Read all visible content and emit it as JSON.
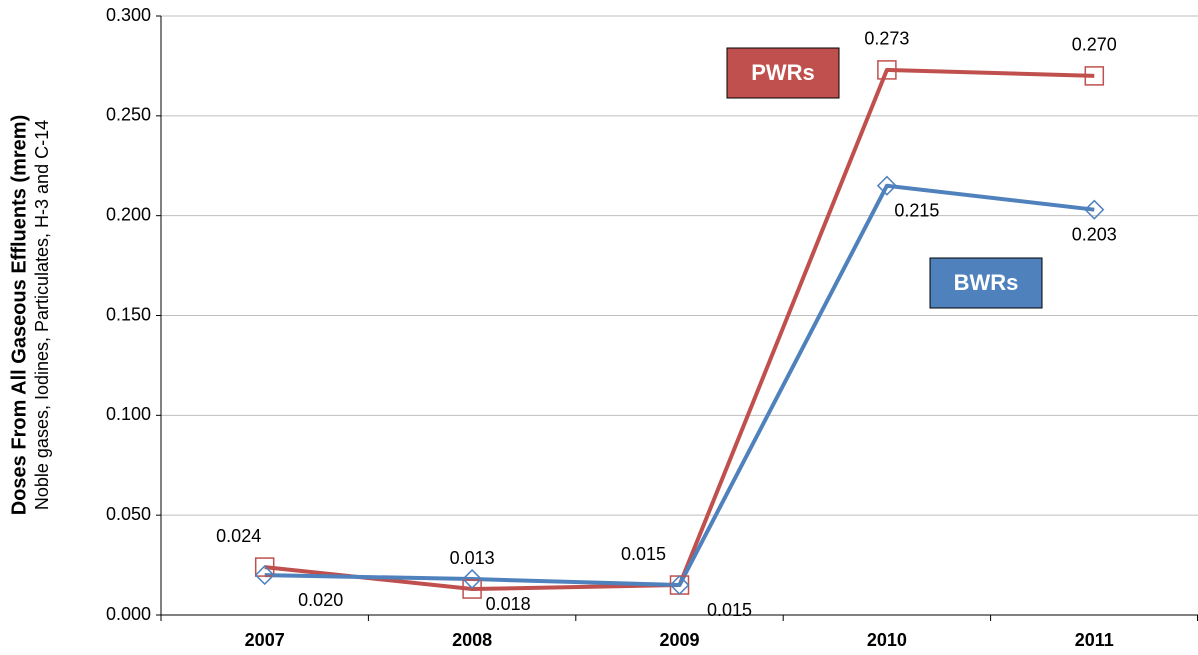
{
  "chart_data": {
    "type": "line",
    "y_axis_title": "Doses From All Gaseous Effluents (mrem)",
    "y_axis_subtitle": "Noble gases, Iodines, Particulates, H-3 and C-14",
    "categories": [
      "2007",
      "2008",
      "2009",
      "2010",
      "2011"
    ],
    "series": [
      {
        "name": "PWRs",
        "color": "#c0504d",
        "marker": "square",
        "values": [
          0.024,
          0.013,
          0.015,
          0.273,
          0.27
        ],
        "value_labels": [
          "0.024",
          "0.013",
          "0.015",
          "0.273",
          "0.270"
        ]
      },
      {
        "name": "BWRs",
        "color": "#4f81bd",
        "marker": "diamond",
        "values": [
          0.02,
          0.018,
          0.015,
          0.215,
          0.203
        ],
        "value_labels": [
          "0.020",
          "0.018",
          "0.015",
          "0.215",
          "0.203"
        ]
      }
    ],
    "ylim": [
      0,
      0.3
    ],
    "yticks": [
      {
        "value": 0,
        "label": "0.000"
      },
      {
        "value": 0.05,
        "label": "0.050"
      },
      {
        "value": 0.1,
        "label": "0.100"
      },
      {
        "value": 0.15,
        "label": "0.150"
      },
      {
        "value": 0.2,
        "label": "0.200"
      },
      {
        "value": 0.25,
        "label": "0.250"
      },
      {
        "value": 0.3,
        "label": "0.300"
      }
    ],
    "grid": true
  }
}
